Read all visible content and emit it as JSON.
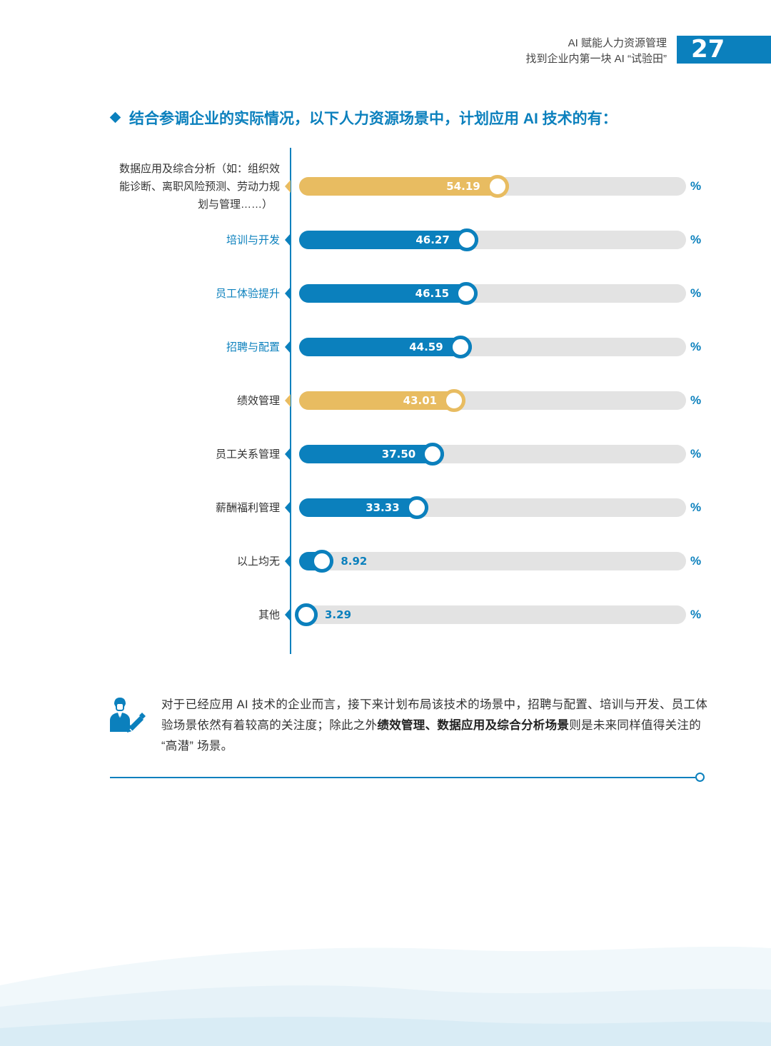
{
  "header": {
    "line1": "AI 赋能人力资源管理",
    "line2": "找到企业内第一块 AI “试验田”",
    "page_number": "27"
  },
  "section_title": "结合参调企业的实际情况，以下人力资源场景中，计划应用 AI 技术的有：",
  "chart_data": {
    "type": "bar",
    "orientation": "horizontal",
    "xlim": [
      0,
      100
    ],
    "unit": "%",
    "categories": [
      "数据应用及综合分析（如：组织效能诊断、离职风险预测、劳动力规划与管理……）",
      "培训与开发",
      "员工体验提升",
      "招聘与配置",
      "绩效管理",
      "员工关系管理",
      "薪酬福利管理",
      "以上均无",
      "其他"
    ],
    "category_lines": [
      [
        "数据应用及综合分析（如：组织效",
        "能诊断、离职风险预测、劳动力规",
        "划与管理……）"
      ],
      [
        "培训与开发"
      ],
      [
        "员工体验提升"
      ],
      [
        "招聘与配置"
      ],
      [
        "绩效管理"
      ],
      [
        "员工关系管理"
      ],
      [
        "薪酬福利管理"
      ],
      [
        "以上均无"
      ],
      [
        "其他"
      ]
    ],
    "values": [
      54.19,
      46.27,
      46.15,
      44.59,
      43.01,
      37.5,
      33.33,
      8.92,
      3.29
    ],
    "value_labels": [
      "54.19",
      "46.27",
      "46.15",
      "44.59",
      "43.01",
      "37.50",
      "33.33",
      "8.92",
      "3.29"
    ],
    "bar_colors": [
      "#e8bc61",
      "#0b80bd",
      "#0b80bd",
      "#0b80bd",
      "#e8bc61",
      "#0b80bd",
      "#0b80bd",
      "#0b80bd",
      "#0b80bd"
    ],
    "label_colors": [
      "#333333",
      "#0b80bd",
      "#0b80bd",
      "#0b80bd",
      "#333333",
      "#333333",
      "#333333",
      "#333333",
      "#333333"
    ],
    "grid": false,
    "legend": "none"
  },
  "note": {
    "part1": "对于已经应用 AI 技术的企业而言，接下来计划布局该技术的场景中，招聘与配置、培训与开发、员工体验场景依然有着较高的关注度；除此之外",
    "bold": "绩效管理、数据应用及综合分析场景",
    "part2": "则是未来同样值得关注的 “高潜” 场景。"
  },
  "colors": {
    "accent": "#0b80bd",
    "highlight": "#e8bc61",
    "track": "#e3e3e3"
  },
  "icons": [
    "person-writing-icon",
    "diamond-bullet-icon"
  ]
}
